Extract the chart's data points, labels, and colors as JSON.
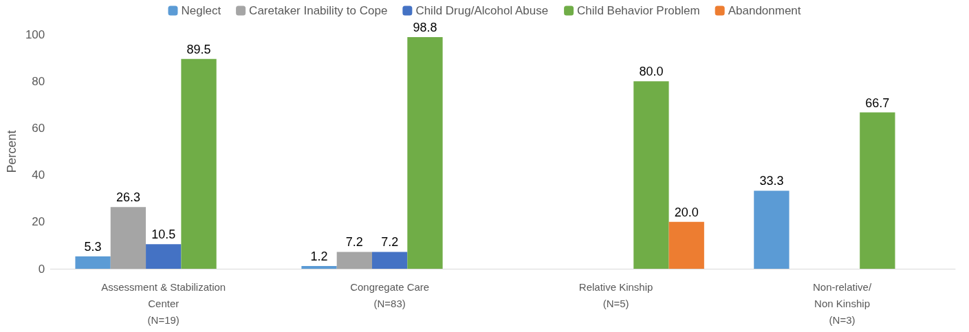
{
  "chart_data": {
    "type": "bar",
    "ylabel": "Percent",
    "categories": [
      "Assessment & Stabilization\nCenter\n(N=19)",
      "Congregate Care\n(N=83)",
      "Relative Kinship\n(N=5)",
      "Non-relative/\nNon Kinship\n(N=3)"
    ],
    "series": [
      {
        "name": "Neglect",
        "color": "#5b9bd5",
        "values": [
          5.3,
          1.2,
          null,
          33.3
        ],
        "value_labels": [
          "5.3",
          "1.2",
          null,
          "33.3"
        ]
      },
      {
        "name": "Caretaker Inability to Cope",
        "color": "#a5a5a5",
        "values": [
          26.3,
          7.2,
          null,
          null
        ],
        "value_labels": [
          "26.3",
          "7.2",
          null,
          null
        ]
      },
      {
        "name": "Child Drug/Alcohol Abuse",
        "color": "#4472c4",
        "values": [
          10.5,
          7.2,
          null,
          null
        ],
        "value_labels": [
          "10.5",
          "7.2",
          null,
          null
        ]
      },
      {
        "name": "Child Behavior Problem",
        "color": "#70ad47",
        "values": [
          89.5,
          98.8,
          80.0,
          66.7
        ],
        "value_labels": [
          "89.5",
          "98.8",
          "80.0",
          "66.7"
        ]
      },
      {
        "name": "Abandonment",
        "color": "#ed7d31",
        "values": [
          null,
          null,
          20.0,
          null
        ],
        "value_labels": [
          null,
          null,
          "20.0",
          null
        ]
      }
    ],
    "ylim": [
      0,
      100
    ],
    "yticks": [
      0,
      20,
      40,
      60,
      80,
      100
    ],
    "grid": false,
    "legend": "top"
  }
}
